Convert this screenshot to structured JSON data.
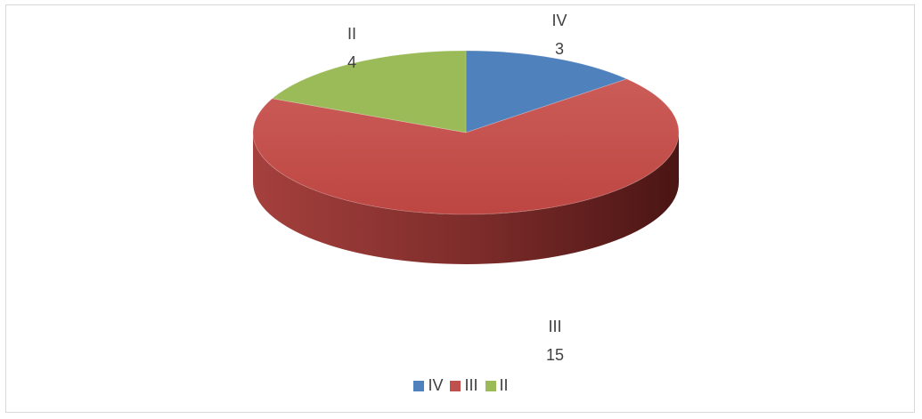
{
  "chart_data": {
    "type": "pie",
    "title": "",
    "categories": [
      "IV",
      "III",
      "II"
    ],
    "values": [
      3,
      15,
      4
    ],
    "colors": [
      "#4f81bd",
      "#c0504d",
      "#9bbb59"
    ],
    "legend_position": "bottom",
    "style": "3d"
  }
}
